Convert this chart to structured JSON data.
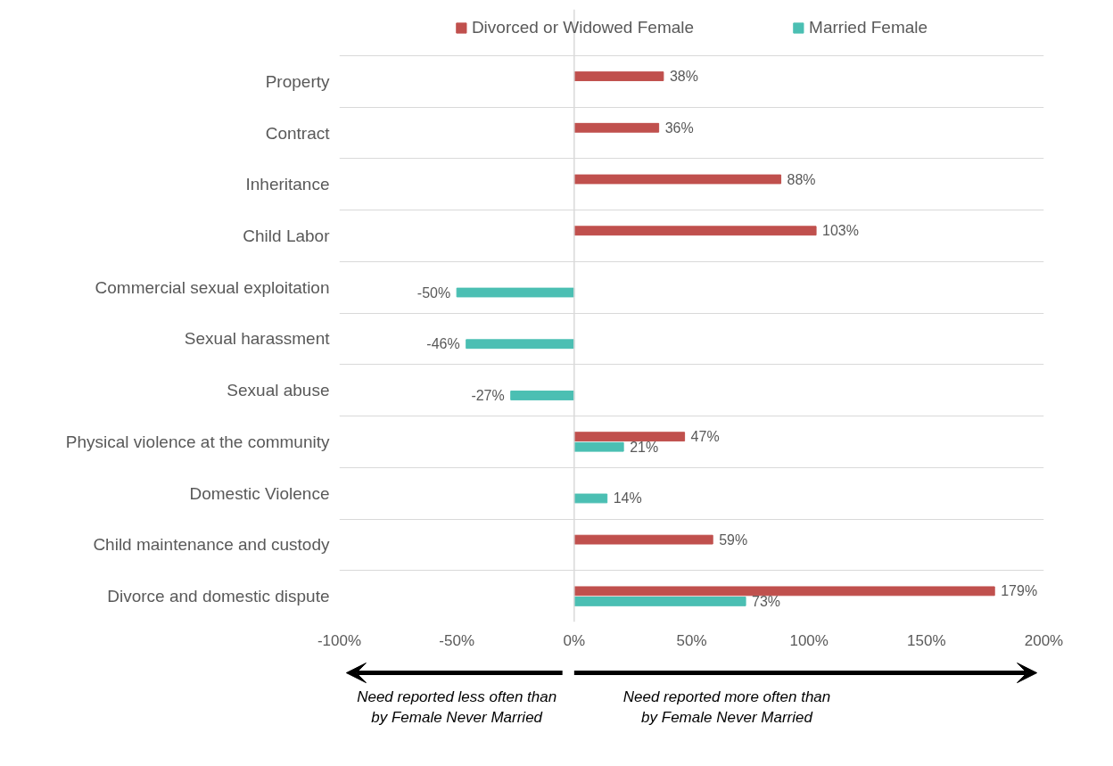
{
  "chart_data": {
    "type": "bar",
    "orientation": "horizontal",
    "categories": [
      "Property",
      "Contract",
      "Inheritance",
      "Child Labor",
      "Commercial sexual exploitation",
      "Sexual harassment",
      "Sexual abuse",
      "Physical violence at the community",
      "Domestic Violence",
      "Child maintenance and custody",
      "Divorce and domestic dispute"
    ],
    "series": [
      {
        "name": "Divorced or Widowed Female",
        "color": "#c0504d",
        "values": [
          38,
          36,
          88,
          103,
          null,
          null,
          null,
          47,
          null,
          59,
          179
        ],
        "value_labels": [
          "38%",
          "36%",
          "88%",
          "103%",
          null,
          null,
          null,
          "47%",
          null,
          "59%",
          "179%"
        ]
      },
      {
        "name": "Married Female",
        "color": "#4bbfb3",
        "values": [
          null,
          null,
          null,
          null,
          -50,
          -46,
          -27,
          21,
          14,
          null,
          73
        ],
        "value_labels": [
          null,
          null,
          null,
          null,
          "-50%",
          "-46%",
          "-27%",
          "21%",
          "14%",
          null,
          "73%"
        ]
      }
    ],
    "xlim": [
      -100,
      200
    ],
    "xticks": [
      {
        "value": -100,
        "label": "-100%"
      },
      {
        "value": -50,
        "label": "-50%"
      },
      {
        "value": 0,
        "label": "0%"
      },
      {
        "value": 50,
        "label": "50%"
      },
      {
        "value": 100,
        "label": "100%"
      },
      {
        "value": 150,
        "label": "150%"
      },
      {
        "value": 200,
        "label": "200%"
      }
    ],
    "grid": "y",
    "legend": "top",
    "annotations": [
      "Need reported less often than\nby Female Never Married",
      "Need reported more often than\nby Female Never Married"
    ]
  }
}
